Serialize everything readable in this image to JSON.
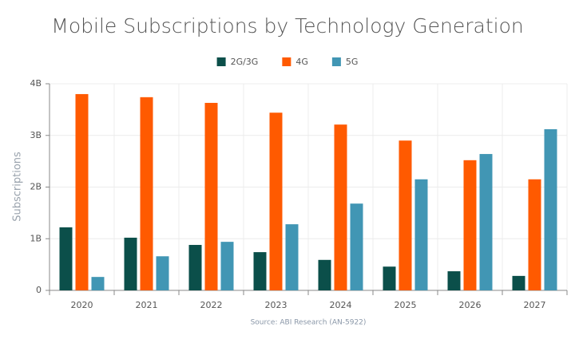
{
  "chart_data": {
    "type": "bar",
    "title": "Mobile Subscriptions by Technology Generation",
    "y_label": "Subscriptions",
    "source": "Source: ABI Research (AN-5922)",
    "categories": [
      "2020",
      "2021",
      "2022",
      "2023",
      "2024",
      "2025",
      "2026",
      "2027"
    ],
    "series": [
      {
        "name": "2G/3G",
        "color": "#0b4f4a",
        "values": [
          1.22,
          1.02,
          0.88,
          0.74,
          0.59,
          0.46,
          0.37,
          0.28
        ]
      },
      {
        "name": "4G",
        "color": "#ff5a00",
        "values": [
          3.8,
          3.74,
          3.63,
          3.44,
          3.21,
          2.9,
          2.52,
          2.15
        ]
      },
      {
        "name": "5G",
        "color": "#4196b4",
        "values": [
          0.26,
          0.66,
          0.94,
          1.28,
          1.68,
          2.15,
          2.64,
          3.12
        ]
      }
    ],
    "ylim": [
      0,
      4
    ],
    "yticks": [
      0,
      {
        "value": 1,
        "label": "1B"
      },
      {
        "value": 2,
        "label": "2B"
      },
      {
        "value": 3,
        "label": "3B"
      },
      {
        "value": 4,
        "label": "4B"
      }
    ],
    "grid": true
  }
}
